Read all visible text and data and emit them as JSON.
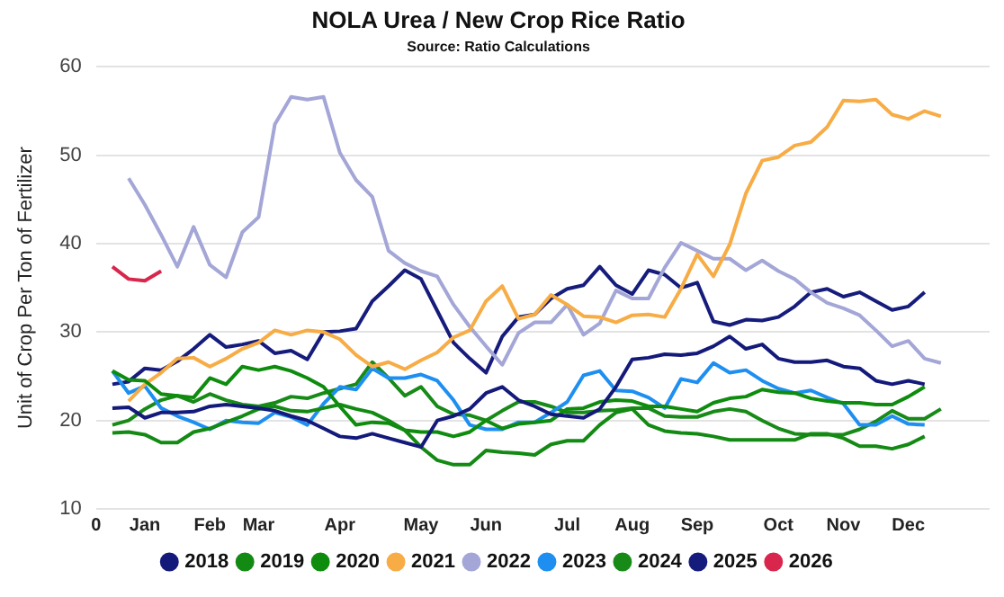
{
  "chart_data": {
    "type": "line",
    "title": "NOLA Urea / New Crop Rice Ratio",
    "subtitle": "Source: Ratio Calculations",
    "ylabel": "Unit of Crop Per Ton of Fertilizer",
    "categories": [
      "0",
      null,
      null,
      "Jan",
      null,
      null,
      null,
      "Feb",
      null,
      null,
      "Mar",
      null,
      null,
      null,
      null,
      "Apr",
      null,
      null,
      null,
      null,
      "May",
      null,
      null,
      null,
      "Jun",
      null,
      null,
      null,
      null,
      "Jul",
      null,
      null,
      null,
      "Aug",
      null,
      null,
      null,
      "Sep",
      null,
      null,
      null,
      null,
      "Oct",
      null,
      null,
      null,
      "Nov",
      null,
      null,
      null,
      "Dec",
      null,
      null,
      null,
      null,
      null
    ],
    "ylim": [
      10,
      60
    ],
    "yticks": [
      10,
      20,
      30,
      40,
      50,
      60
    ],
    "grid": "y",
    "legend": "bottom",
    "marker": "none",
    "line_style": "solid",
    "series": [
      {
        "name": "2018",
        "color": "#141a7a",
        "values": [
          null,
          21.4,
          21.5,
          20.3,
          20.9,
          20.9,
          21,
          21.6,
          21.8,
          21.6,
          21.4,
          21.1,
          20.5,
          20,
          19.1,
          18.2,
          18,
          18.5,
          18,
          17.5,
          17,
          20,
          20.5,
          21.3,
          23.1,
          23.8,
          22.3,
          21.6,
          20.7,
          20.5,
          20.3,
          21.3,
          23.8,
          26.9,
          27.1,
          27.5,
          27.4,
          27.6,
          28.4,
          29.5,
          28.1,
          28.6,
          27,
          26.6,
          26.6,
          26.8,
          26.1,
          25.9,
          24.5,
          24.1,
          24.5,
          24.1,
          null,
          null,
          null,
          null
        ]
      },
      {
        "name": "2019",
        "color": "#138a13",
        "values": [
          null,
          18.6,
          18.7,
          18.4,
          17.5,
          17.5,
          18.7,
          19.1,
          19.8,
          20.5,
          21.3,
          21.6,
          21.1,
          21,
          21.4,
          21.8,
          21.3,
          20.9,
          20,
          18.9,
          17,
          15.5,
          15,
          15,
          16.6,
          16.4,
          16.3,
          16.1,
          17.3,
          17.7,
          17.7,
          19.5,
          20.9,
          21.3,
          19.5,
          18.8,
          18.6,
          18.5,
          18.2,
          17.8,
          17.8,
          17.8,
          17.8,
          17.8,
          18.5,
          18.5,
          18,
          17.1,
          17.1,
          16.8,
          17.3,
          18.2,
          null,
          null,
          null,
          null
        ]
      },
      {
        "name": "2020",
        "color": "#0e8c0e",
        "values": [
          null,
          25.6,
          24.6,
          24.5,
          23,
          22.8,
          22.6,
          24.8,
          24.1,
          26.1,
          25.7,
          26.1,
          25.6,
          24.8,
          23.8,
          21.6,
          19.5,
          19.8,
          19.7,
          18.9,
          18.7,
          18.7,
          18.2,
          18.7,
          20,
          19.1,
          19.6,
          19.8,
          20,
          21.3,
          21.4,
          22.1,
          22.3,
          22.2,
          21.6,
          21.6,
          21.3,
          21,
          22,
          22.5,
          22.7,
          23.5,
          23.2,
          23.1,
          22.5,
          22.2,
          22,
          22,
          21.8,
          21.8,
          22.7,
          23.8,
          null,
          null,
          null,
          null
        ]
      },
      {
        "name": "2021",
        "color": "#f7ac45",
        "values": [
          null,
          null,
          22.2,
          24.1,
          25.4,
          27,
          27.1,
          26.1,
          27,
          28.1,
          28.8,
          30.2,
          29.7,
          30.2,
          30,
          29.2,
          27.4,
          26.1,
          26.6,
          25.8,
          26.8,
          27.7,
          29.4,
          30.2,
          33.5,
          35.2,
          31.5,
          32,
          34.2,
          33.1,
          31.8,
          31.7,
          31.1,
          31.9,
          32,
          31.7,
          34.9,
          38.8,
          36.3,
          39.9,
          45.7,
          49.4,
          49.8,
          51.1,
          51.5,
          53.2,
          56.2,
          56.1,
          56.3,
          54.6,
          54.1,
          55,
          54.4,
          null,
          null,
          null
        ]
      },
      {
        "name": "2022",
        "color": "#a3a6d6",
        "values": [
          null,
          null,
          47.4,
          44.4,
          41,
          37.4,
          41.9,
          37.6,
          36.2,
          41.3,
          43,
          53.5,
          56.6,
          56.3,
          56.6,
          50.3,
          47.2,
          45.3,
          39.2,
          37.8,
          36.9,
          36.3,
          33.1,
          30.6,
          28.4,
          26.3,
          29.9,
          31.1,
          31.1,
          33.1,
          29.7,
          31,
          34.7,
          33.8,
          33.8,
          37.3,
          40.1,
          39.2,
          38.3,
          38.3,
          37,
          38.1,
          36.9,
          36,
          34.5,
          33.3,
          32.7,
          31.9,
          30.2,
          28.4,
          29,
          27,
          26.5,
          null,
          null,
          null
        ]
      },
      {
        "name": "2023",
        "color": "#1e8ff0",
        "values": [
          null,
          25.6,
          23.1,
          23.9,
          21.4,
          20.5,
          19.8,
          19,
          20,
          19.8,
          19.7,
          20.9,
          20.4,
          19.5,
          21.9,
          23.8,
          23.5,
          25.9,
          24.8,
          24.8,
          25.2,
          24.5,
          22.3,
          19.5,
          19,
          19,
          19.8,
          19.8,
          20.9,
          22.1,
          25.1,
          25.6,
          23.4,
          23.3,
          22.6,
          21.4,
          24.7,
          24.3,
          26.5,
          25.4,
          25.7,
          24.5,
          23.6,
          23.1,
          23.4,
          22.6,
          21.9,
          19.5,
          19.5,
          20.5,
          19.6,
          19.5,
          null,
          null,
          null,
          null
        ]
      },
      {
        "name": "2024",
        "color": "#178a17",
        "values": [
          null,
          19.5,
          20,
          21.3,
          22.3,
          22.8,
          22.1,
          23,
          22.3,
          21.8,
          21.6,
          22,
          22.7,
          22.5,
          23.1,
          23.6,
          24.1,
          26.6,
          24.8,
          22.8,
          23.8,
          21.6,
          20.7,
          20.6,
          20,
          21.1,
          22.1,
          22.1,
          21.6,
          20.9,
          20.9,
          21.1,
          21.2,
          21.4,
          21.4,
          20.5,
          20.4,
          20.4,
          21,
          21.3,
          21,
          20,
          19.1,
          18.5,
          18.4,
          18.4,
          18.4,
          19,
          19.9,
          21.1,
          20.2,
          20.2,
          21.3,
          null,
          null,
          null
        ]
      },
      {
        "name": "2025",
        "color": "#161c7c",
        "values": [
          null,
          24.1,
          24.4,
          25.9,
          25.7,
          26.7,
          28.1,
          29.7,
          28.3,
          28.6,
          29,
          27.6,
          27.9,
          26.9,
          30,
          30.1,
          30.4,
          33.5,
          35.2,
          37,
          36,
          32.4,
          28.8,
          27,
          25.4,
          29.5,
          31.7,
          32,
          33.8,
          34.9,
          35.3,
          37.4,
          35.3,
          34.3,
          37,
          36.5,
          35,
          35.6,
          31.2,
          30.8,
          31.4,
          31.3,
          31.7,
          32.9,
          34.5,
          34.9,
          34,
          34.5,
          33.5,
          32.5,
          32.9,
          34.5,
          null,
          null,
          null,
          null
        ]
      },
      {
        "name": "2026",
        "color": "#d8264c",
        "values": [
          null,
          37.4,
          36,
          35.8,
          36.9,
          null,
          null,
          null,
          null,
          null,
          null,
          null,
          null,
          null,
          null,
          null,
          null,
          null,
          null,
          null,
          null,
          null,
          null,
          null,
          null,
          null,
          null,
          null,
          null,
          null,
          null,
          null,
          null,
          null,
          null,
          null,
          null,
          null,
          null,
          null,
          null,
          null,
          null,
          null,
          null,
          null,
          null,
          null,
          null,
          null,
          null,
          null,
          null,
          null,
          null,
          null
        ]
      }
    ]
  }
}
